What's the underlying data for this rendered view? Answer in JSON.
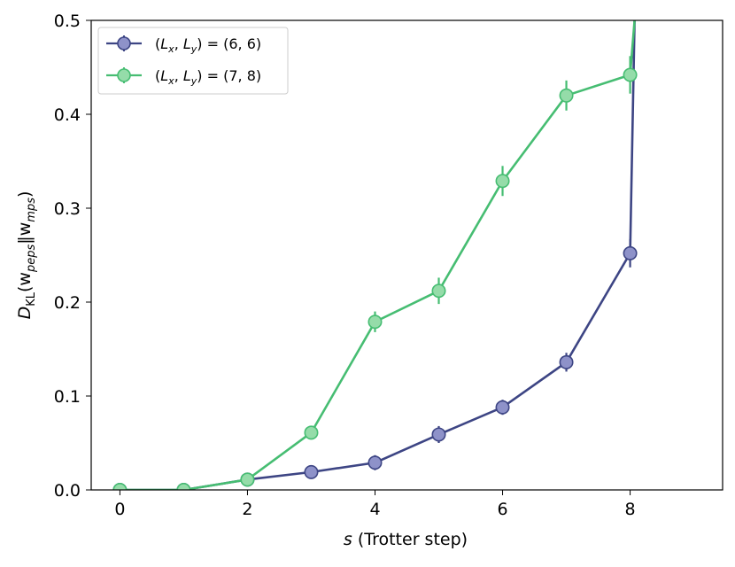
{
  "chart_data": {
    "type": "line",
    "xlabel_var": "s",
    "xlabel_rest": " (Trotter step)",
    "ylabel": {
      "main": "D",
      "sub1": "KL",
      "open": "(w",
      "sub2": "peps",
      "mid": "‖w",
      "sub3": "mps",
      "close": ")"
    },
    "xlim": [
      -0.45,
      9.45
    ],
    "ylim": [
      0,
      0.5
    ],
    "xticks": [
      "0",
      "2",
      "4",
      "6",
      "8"
    ],
    "xtick_values": [
      0,
      2,
      4,
      6,
      8
    ],
    "yticks": [
      "0.0",
      "0.1",
      "0.2",
      "0.3",
      "0.4",
      "0.5"
    ],
    "ytick_values": [
      0,
      0.1,
      0.2,
      0.3,
      0.4,
      0.5
    ],
    "grid": false,
    "legend_position": "top-left",
    "series": [
      {
        "name": "(L_x, L_y) = (6, 6)",
        "legend": {
          "lp": "(",
          "L1": "L",
          "s1": "x",
          "comma": ", ",
          "L2": "L",
          "s2": "y",
          "rest": ") = (6, 6)"
        },
        "line_color": "#3d4584",
        "marker_fill": "#8e92c9",
        "x": [
          0,
          1,
          2,
          3,
          4,
          5,
          6,
          7,
          8,
          8.07
        ],
        "y": [
          0.0,
          0.0,
          0.011,
          0.019,
          0.029,
          0.059,
          0.088,
          0.136,
          0.252,
          0.5
        ],
        "err": [
          0.002,
          0.002,
          0.003,
          0.007,
          0.008,
          0.009,
          0.008,
          0.01,
          0.015,
          0
        ],
        "markers": [
          true,
          true,
          true,
          true,
          true,
          true,
          true,
          true,
          true,
          false
        ]
      },
      {
        "name": "(L_x, L_y) = (7, 8)",
        "legend": {
          "lp": "(",
          "L1": "L",
          "s1": "x",
          "comma": ", ",
          "L2": "L",
          "s2": "y",
          "rest": ") = (7, 8)"
        },
        "line_color": "#46bd72",
        "marker_fill": "#95dca9",
        "x": [
          0,
          1,
          2,
          3,
          4,
          5,
          6,
          7,
          8,
          8.07
        ],
        "y": [
          0.0,
          0.0,
          0.011,
          0.061,
          0.179,
          0.212,
          0.329,
          0.42,
          0.442,
          0.5
        ],
        "err": [
          0.002,
          0.002,
          0.003,
          0.004,
          0.011,
          0.014,
          0.016,
          0.016,
          0.02,
          0
        ],
        "markers": [
          true,
          true,
          true,
          true,
          true,
          true,
          true,
          true,
          true,
          false
        ]
      }
    ]
  }
}
